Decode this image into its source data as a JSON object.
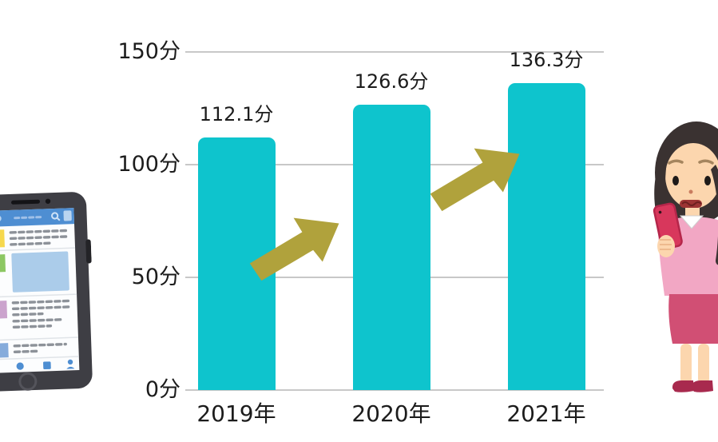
{
  "chart_data": {
    "type": "bar",
    "title": "",
    "categories": [
      "2019年",
      "2020年",
      "2021年"
    ],
    "values": [
      112.1,
      126.6,
      136.3
    ],
    "data_labels": [
      "112.1分",
      "126.6分",
      "136.3分"
    ],
    "unit": "分",
    "ylim": [
      0,
      150
    ],
    "y_ticks": [
      {
        "value": 150,
        "label": "150分"
      },
      {
        "value": 100,
        "label": "100分"
      },
      {
        "value": 50,
        "label": "50分"
      },
      {
        "value": 0,
        "label": "0分"
      }
    ],
    "grid": true,
    "legend_position": "none",
    "bar_color": "#0ec4cd",
    "axis_text_color": "#1c1c1c",
    "gridline_color": "#c8c8c8",
    "annotations": [
      {
        "type": "up-arrow",
        "between": [
          "2019年",
          "2020年"
        ],
        "color": "#b0a23c"
      },
      {
        "type": "up-arrow",
        "between": [
          "2020年",
          "2021年"
        ],
        "color": "#b0a23c"
      }
    ]
  },
  "illustrations": {
    "left": "smartphone-social-feed-illustration",
    "right": "worried-woman-looking-at-phone-illustration"
  }
}
